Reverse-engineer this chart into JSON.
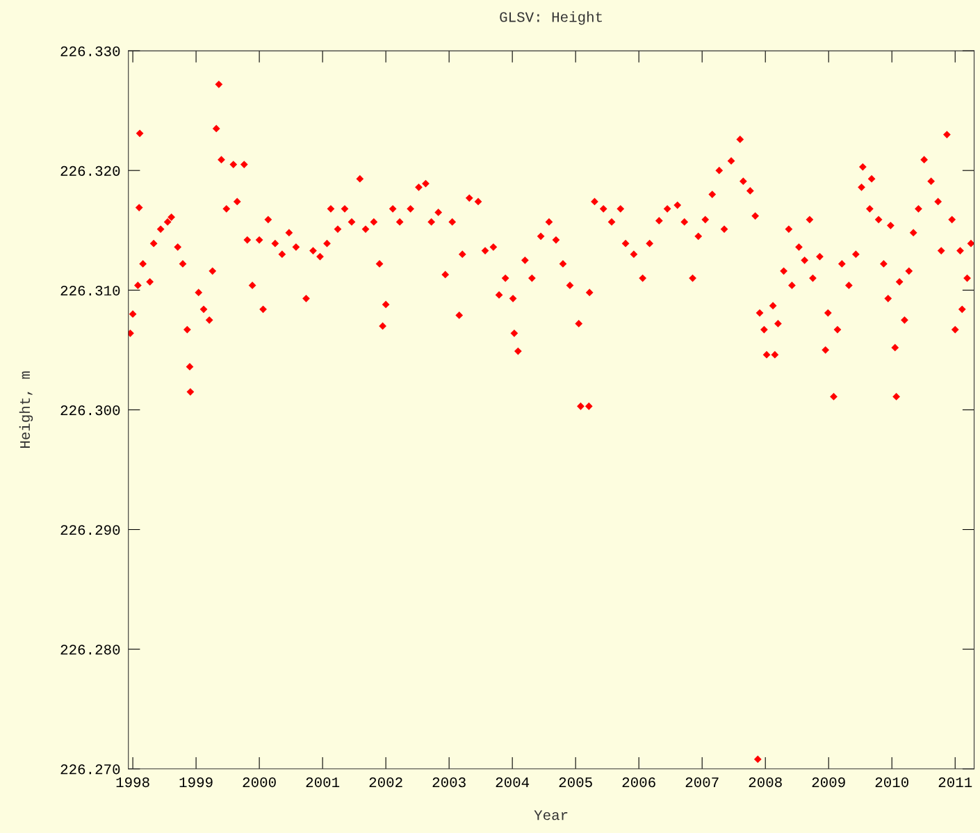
{
  "chart_data": {
    "type": "scatter",
    "title": "GLSV: Height",
    "xlabel": "Year",
    "ylabel": "Height, m",
    "xlim": [
      1997.93,
      2011.3
    ],
    "xticks": [
      1998,
      1999,
      2000,
      2001,
      2002,
      2003,
      2004,
      2005,
      2006,
      2007,
      2008,
      2009,
      2010,
      2011
    ],
    "ylim": [
      226.27,
      226.33
    ],
    "yticks": [
      {
        "value": 226.27,
        "label": "226.270"
      },
      {
        "value": 226.28,
        "label": "226.280"
      },
      {
        "value": 226.29,
        "label": "226.290"
      },
      {
        "value": 226.3,
        "label": "226.300"
      },
      {
        "value": 226.31,
        "label": "226.310"
      },
      {
        "value": 226.32,
        "label": "226.320"
      },
      {
        "value": 226.33,
        "label": "226.330"
      }
    ],
    "grid": false,
    "marker": "diamond",
    "series": [
      {
        "color": "#ff0000",
        "x": [
          1997.96,
          1998.0,
          1998.11,
          1998.1,
          1998.08,
          1998.16,
          1998.27,
          1998.33,
          1998.44,
          1998.55,
          1998.61,
          1998.71,
          1998.79,
          1998.86,
          1998.9,
          1998.91,
          1999.04,
          1999.12,
          1999.21,
          1999.26,
          1999.32,
          1999.36,
          1999.4,
          1999.48,
          1999.59,
          1999.65,
          1999.76,
          1999.81,
          1999.89,
          2000.0,
          2000.06,
          2000.14,
          2000.25,
          2000.36,
          2000.47,
          2000.58,
          2000.74,
          2000.85,
          2000.96,
          2001.07,
          2001.13,
          2001.24,
          2001.35,
          2001.46,
          2001.59,
          2001.68,
          2001.81,
          2001.9,
          2001.95,
          2002.0,
          2002.11,
          2002.22,
          2002.39,
          2002.52,
          2002.63,
          2002.72,
          2002.83,
          2002.94,
          2003.05,
          2003.16,
          2003.21,
          2003.32,
          2003.46,
          2003.57,
          2003.7,
          2003.79,
          2003.89,
          2004.01,
          2004.03,
          2004.09,
          2004.2,
          2004.31,
          2004.45,
          2004.58,
          2004.69,
          2004.8,
          2004.91,
          2005.05,
          2005.08,
          2005.21,
          2005.22,
          2005.3,
          2005.44,
          2005.57,
          2005.71,
          2005.79,
          2005.92,
          2006.06,
          2006.17,
          2006.32,
          2006.45,
          2006.61,
          2006.72,
          2006.85,
          2006.94,
          2007.05,
          2007.16,
          2007.27,
          2007.35,
          2007.46,
          2007.6,
          2007.65,
          2007.76,
          2007.84,
          2007.88,
          2007.91,
          2007.98,
          2008.02,
          2008.12,
          2008.15,
          2008.2,
          2008.29,
          2008.37,
          2008.42,
          2008.53,
          2008.62,
          2008.7,
          2008.75,
          2008.86,
          2008.95,
          2008.99,
          2009.08,
          2009.14,
          2009.21,
          2009.32,
          2009.43,
          2009.52,
          2009.54,
          2009.65,
          2009.68,
          2009.79,
          2009.87,
          2009.94,
          2009.98,
          2010.05,
          2010.07,
          2010.12,
          2010.2,
          2010.27,
          2010.34,
          2010.42,
          2010.51,
          2010.62,
          2010.73,
          2010.78,
          2010.87,
          2010.95,
          2011.0,
          2011.08,
          2011.11,
          2011.19,
          2011.25
        ],
        "values": [
          226.3064,
          226.308,
          226.3231,
          226.3169,
          226.3104,
          226.3122,
          226.3107,
          226.3139,
          226.3151,
          226.3157,
          226.3161,
          226.3136,
          226.3122,
          226.3067,
          226.3036,
          226.3015,
          226.3098,
          226.3084,
          226.3075,
          226.3116,
          226.3235,
          226.3272,
          226.3209,
          226.3168,
          226.3205,
          226.3174,
          226.3205,
          226.3142,
          226.3104,
          226.3142,
          226.3084,
          226.3159,
          226.3139,
          226.313,
          226.3148,
          226.3136,
          226.3093,
          226.3133,
          226.3128,
          226.3139,
          226.3168,
          226.3151,
          226.3168,
          226.3157,
          226.3193,
          226.3151,
          226.3157,
          226.3122,
          226.307,
          226.3088,
          226.3168,
          226.3157,
          226.3168,
          226.3186,
          226.3189,
          226.3157,
          226.3165,
          226.3113,
          226.3157,
          226.3079,
          226.313,
          226.3177,
          226.3174,
          226.3133,
          226.3136,
          226.3096,
          226.311,
          226.3093,
          226.3064,
          226.3049,
          226.3125,
          226.311,
          226.3145,
          226.3157,
          226.3142,
          226.3122,
          226.3104,
          226.3072,
          226.3003,
          226.3003,
          226.3098,
          226.3174,
          226.3168,
          226.3157,
          226.3168,
          226.3139,
          226.313,
          226.311,
          226.3139,
          226.3158,
          226.3168,
          226.3171,
          226.3157,
          226.311,
          226.3145,
          226.3159,
          226.318,
          226.32,
          226.3151,
          226.3208,
          226.3226,
          226.3191,
          226.3183,
          226.3162,
          226.2708,
          226.3081,
          226.3067,
          226.3046,
          226.3087,
          226.3046,
          226.3072,
          226.3116,
          226.3151,
          226.3104,
          226.3136,
          226.3125,
          226.3159,
          226.311,
          226.3128,
          226.305,
          226.3081,
          226.3011,
          226.3067,
          226.3122,
          226.3104,
          226.313,
          226.3186,
          226.3203,
          226.3168,
          226.3193,
          226.3159,
          226.3122,
          226.3093,
          226.3154,
          226.3052,
          226.3011,
          226.3107,
          226.3075,
          226.3116,
          226.3148,
          226.3168,
          226.3209,
          226.3191,
          226.3174,
          226.3133,
          226.323,
          226.3159,
          226.3067,
          226.3133,
          226.3084,
          226.311,
          226.3139
        ]
      }
    ]
  }
}
